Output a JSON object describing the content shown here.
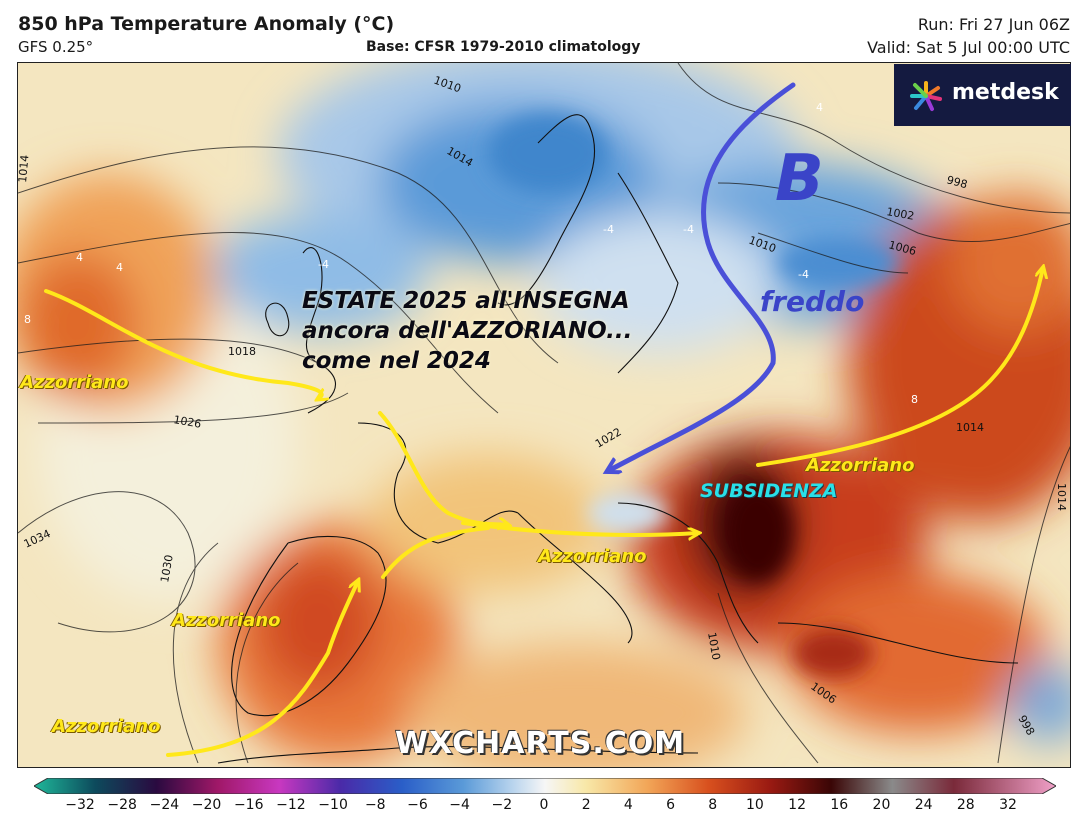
{
  "header": {
    "title": "850 hPa Temperature Anomaly (°C)",
    "subtitle": "GFS 0.25°",
    "base": "Base: CFSR 1979-2010 climatology",
    "run": "Run: Fri 27 Jun 06Z",
    "valid": "Valid: Sat 5 Jul 00:00 UTC"
  },
  "logo": {
    "text": "metdesk"
  },
  "watermark": "WXCHARTS.COM",
  "annotations": {
    "headline": "ESTATE 2025 all'INSEGNA\nancora dell'AZZORIANO...\ncome nel 2024",
    "azzorriano_labels": [
      "Azzorriano",
      "Azzorriano",
      "Azzorriano",
      "Azzorriano",
      "Azzorriano"
    ],
    "freddo": "freddo",
    "low_letter": "B",
    "subsidenza": "SUBSIDENZA"
  },
  "isobar_labels": [
    "1010",
    "1014",
    "1014",
    "1018",
    "1026",
    "1034",
    "1030",
    "1010",
    "1006",
    "1002",
    "998",
    "1014",
    "1014",
    "1010",
    "1006",
    "998",
    "1022"
  ],
  "anomaly_labels": [
    "-4",
    "-4",
    "-4",
    "-4",
    "4",
    "4",
    "4",
    "8",
    "8"
  ],
  "colorbar": {
    "ticks": [
      "−32",
      "−28",
      "−24",
      "−20",
      "−16",
      "−12",
      "−10",
      "−8",
      "−6",
      "−4",
      "−2",
      "0",
      "2",
      "4",
      "6",
      "8",
      "10",
      "12",
      "16",
      "20",
      "24",
      "28",
      "32"
    ]
  },
  "colors": {
    "cold_arrow": "#4a50d8",
    "azzorriano_arrow": "#ffe81a",
    "subsidenza_text": "#29e0e8"
  }
}
